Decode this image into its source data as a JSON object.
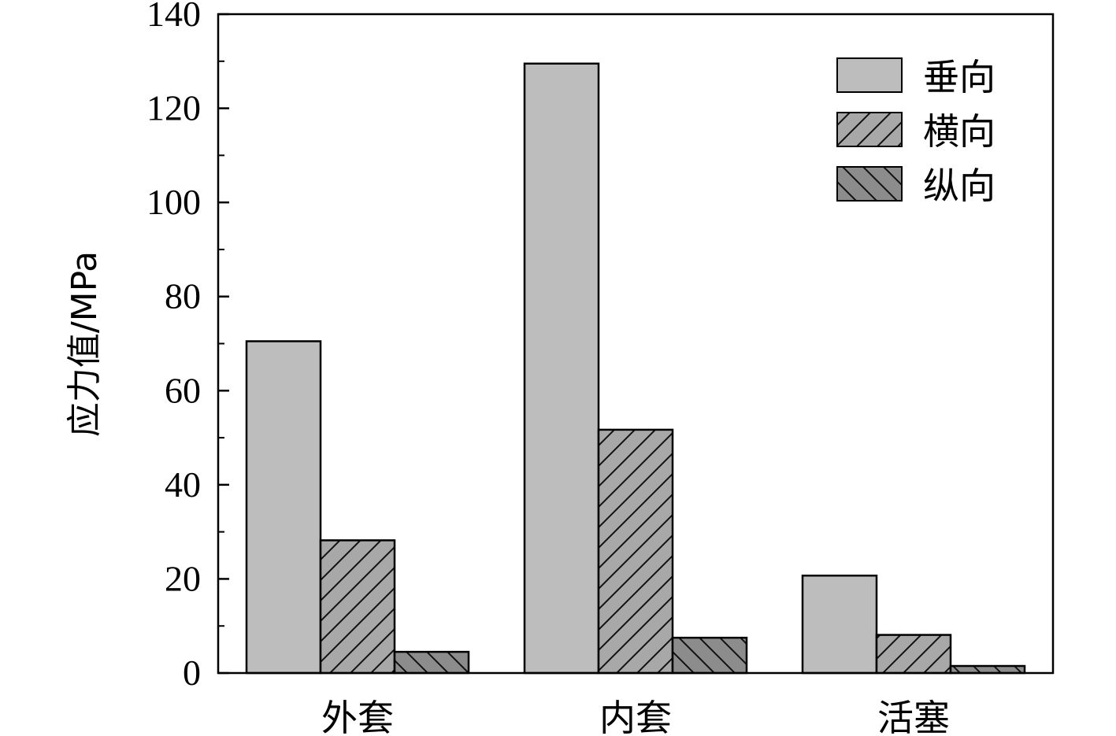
{
  "chart_data": {
    "type": "bar",
    "categories": [
      "外套",
      "内套",
      "活塞"
    ],
    "series": [
      {
        "name": "垂向",
        "values": [
          70.5,
          129.5,
          20.7
        ],
        "fill": "#bdbdbd",
        "pattern": "none"
      },
      {
        "name": "横向",
        "values": [
          28.2,
          51.7,
          8.1
        ],
        "fill": "#a8a8a8",
        "pattern": "forward-hatch"
      },
      {
        "name": "纵向",
        "values": [
          4.5,
          7.5,
          1.5
        ],
        "fill": "#8c8c8c",
        "pattern": "back-hatch"
      }
    ],
    "ylabel": "应力值/MPa",
    "xlabel": "",
    "ylim": [
      0,
      140
    ],
    "yticks": [
      "0",
      "20",
      "40",
      "60",
      "80",
      "100",
      "120",
      "140"
    ],
    "legend_position": "top-right",
    "grid": false
  }
}
